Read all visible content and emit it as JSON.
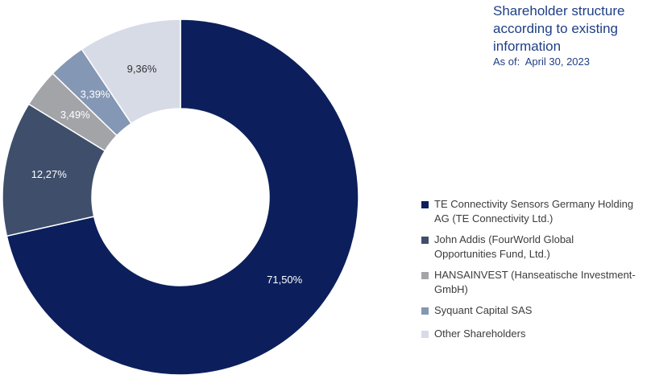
{
  "header": {
    "title_lines": [
      "Shareholder  structure",
      "according to existing",
      "information"
    ],
    "as_of_label": "As of:",
    "as_of_date": "April 30, 2023"
  },
  "chart_data": {
    "type": "pie",
    "donut": true,
    "start_angle_deg": 0,
    "direction": "clockwise",
    "legend_position": "right",
    "slices": [
      {
        "name": "TE Connectivity Sensors Germany Holding AG (TE Connectivity Ltd.)",
        "value": 71.5,
        "label": "71,50%",
        "color": "#0c1f5c",
        "label_color": "#ffffff"
      },
      {
        "name": "John Addis (FourWorld Global Opportunities Fund, Ltd.)",
        "value": 12.27,
        "label": "12,27%",
        "color": "#3e4e6b",
        "label_color": "#ffffff"
      },
      {
        "name": "HANSAINVEST (Hanseatische Investment-GmbH)",
        "value": 3.49,
        "label": "3,49%",
        "color": "#a3a4a8",
        "label_color": "#ffffff"
      },
      {
        "name": "Syquant Capital SAS",
        "value": 3.39,
        "label": "3,39%",
        "color": "#8497b4",
        "label_color": "#ffffff"
      },
      {
        "name": "Other Shareholders",
        "value": 9.36,
        "label": "9,36%",
        "color": "#d6dbe6",
        "label_color": "#333333"
      }
    ]
  },
  "legend": {
    "items": [
      {
        "lines": [
          "TE Connectivity Sensors Germany Holding",
          "AG (TE Connectivity Ltd.)"
        ],
        "color": "#0c1f5c"
      },
      {
        "lines": [
          "John Addis (FourWorld Global",
          "Opportunities Fund, Ltd.)"
        ],
        "color": "#3e4e6b"
      },
      {
        "lines": [
          "HANSAINVEST (Hanseatische Investment-",
          "GmbH)"
        ],
        "color": "#a3a4a8"
      },
      {
        "lines": [
          "Syquant Capital SAS"
        ],
        "color": "#8497b4"
      },
      {
        "lines": [
          "Other Shareholders"
        ],
        "color": "#d6dbe6"
      }
    ]
  }
}
